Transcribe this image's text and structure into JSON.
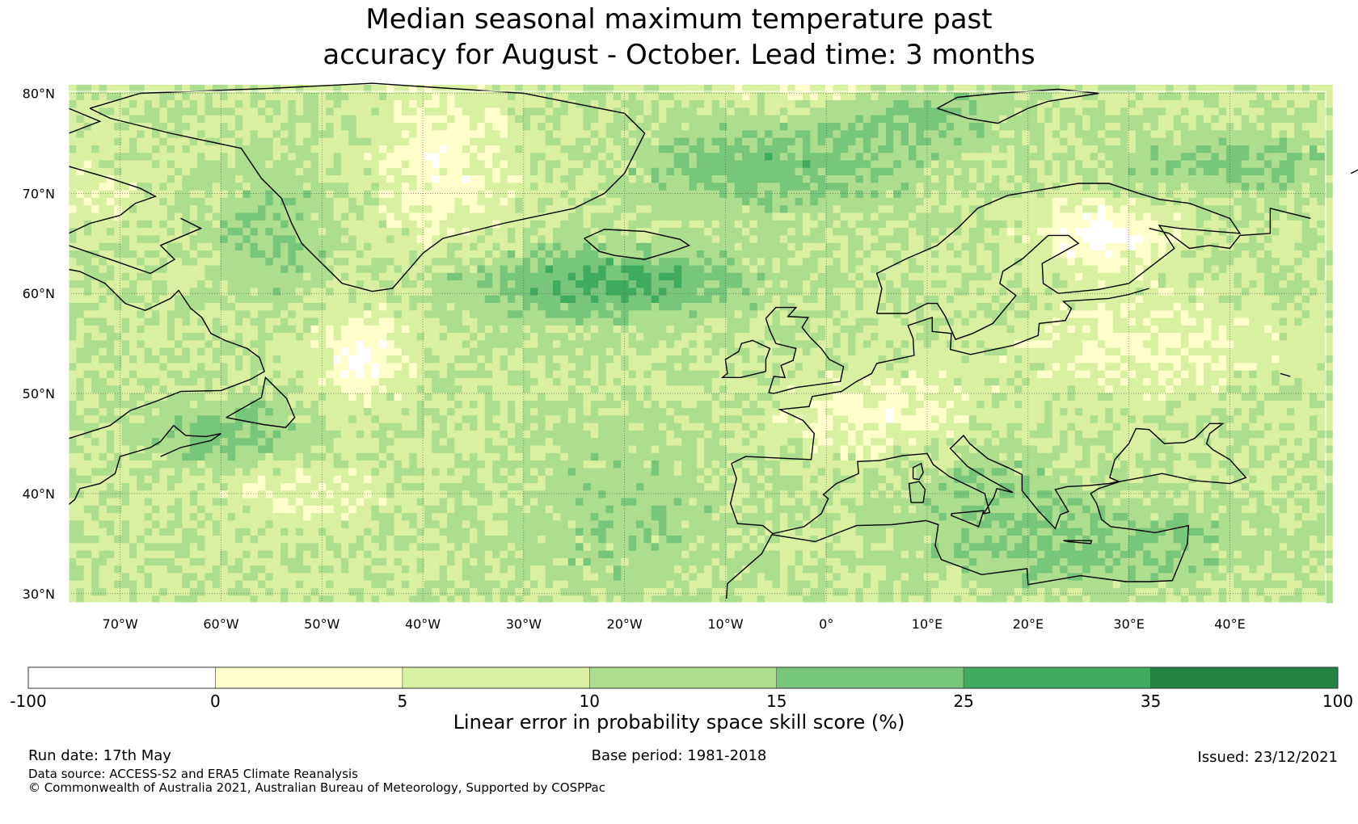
{
  "title": {
    "line1": "Median seasonal maximum temperature past",
    "line2": "accuracy for August - October. Lead time: 3 months"
  },
  "map": {
    "lat_labels": [
      "80°N",
      "70°N",
      "60°N",
      "50°N",
      "40°N",
      "30°N"
    ],
    "lat_values": [
      80,
      70,
      60,
      50,
      40,
      30
    ],
    "lon_labels": [
      "70°W",
      "60°W",
      "50°W",
      "40°W",
      "30°W",
      "20°W",
      "10°W",
      "0°",
      "10°E",
      "20°E",
      "30°E",
      "40°E"
    ],
    "lon_values": [
      -70,
      -60,
      -50,
      -40,
      -30,
      -20,
      -10,
      0,
      10,
      20,
      30,
      40
    ],
    "lon_range": [
      -75.1,
      49.5
    ],
    "lat_range": [
      29.1,
      80.2
    ],
    "colors": {
      "c0": "#ffffff",
      "c1": "#ffffcc",
      "c2": "#d9f0a3",
      "c3": "#addd8e",
      "c4": "#78c679",
      "c5": "#41ab5d",
      "c6": "#238443"
    }
  },
  "colorbar": {
    "ticks": [
      "-100",
      "0",
      "5",
      "10",
      "15",
      "25",
      "35",
      "100"
    ],
    "colors": [
      "#ffffff",
      "#ffffcc",
      "#d9f0a3",
      "#addd8e",
      "#78c679",
      "#41ab5d",
      "#238443"
    ],
    "label": "Linear error in probability space skill score (%)"
  },
  "footer": {
    "run_date": "Run date: 17th May",
    "base_period": "Base period: 1981-2018",
    "issued": "Issued: 23/12/2021",
    "data_source": "Data source: ACCESS-S2 and ERA5 Climate Reanalysis",
    "copyright": "© Commonwealth of Australia 2021, Australian Bureau of Meteorology, Supported by COSPPac"
  }
}
